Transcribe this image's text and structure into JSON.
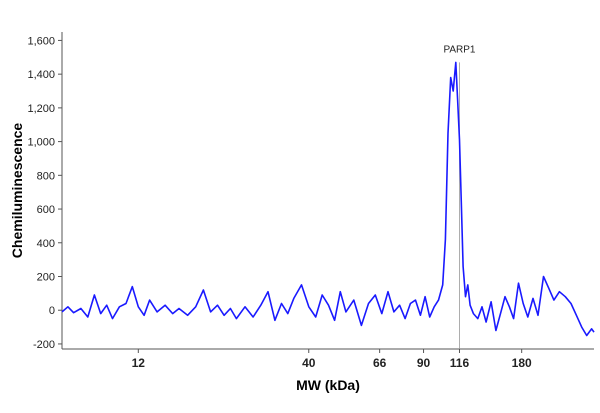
{
  "chart_data": {
    "type": "line",
    "title": "",
    "xlabel": "MW (kDa)",
    "ylabel": "Chemiluminescence",
    "xscale": "log",
    "xlim": [
      7,
      300
    ],
    "ylim": [
      -230,
      1650
    ],
    "grid": false,
    "legend": "none",
    "line_color": "#1a1aff",
    "y_ticks": [
      {
        "value": -200,
        "label": "-200"
      },
      {
        "value": 0,
        "label": "0"
      },
      {
        "value": 200,
        "label": "200"
      },
      {
        "value": 400,
        "label": "400"
      },
      {
        "value": 600,
        "label": "600"
      },
      {
        "value": 800,
        "label": "800"
      },
      {
        "value": 1000,
        "label": "1,000"
      },
      {
        "value": 1200,
        "label": "1,200"
      },
      {
        "value": 1400,
        "label": "1,400"
      },
      {
        "value": 1600,
        "label": "1,600"
      }
    ],
    "x_ticks": [
      {
        "value": 12,
        "label": "12"
      },
      {
        "value": 40,
        "label": "40"
      },
      {
        "value": 66,
        "label": "66"
      },
      {
        "value": 90,
        "label": "90"
      },
      {
        "value": 116,
        "label": "116"
      },
      {
        "value": 180,
        "label": "180"
      }
    ],
    "annotations": [
      {
        "text": "PARP1",
        "x": 116,
        "y": 1470
      }
    ],
    "series": [
      {
        "x": [
          7.0,
          7.3,
          7.6,
          8.0,
          8.4,
          8.8,
          9.2,
          9.6,
          10.0,
          10.5,
          11.0,
          11.5,
          12.0,
          12.5,
          13.0,
          13.7,
          14.5,
          15.3,
          16.0,
          17.0,
          18.0,
          19.0,
          20.0,
          21.0,
          22.0,
          23.0,
          24.0,
          25.5,
          27.0,
          28.5,
          30.0,
          31.5,
          33.0,
          34.5,
          36.0,
          38.0,
          40.0,
          42.0,
          44.0,
          46.0,
          48.0,
          50.0,
          52.0,
          55.0,
          58.0,
          61.0,
          64.0,
          67.0,
          70.0,
          73.0,
          76.0,
          79.0,
          82.0,
          85.0,
          88.0,
          91.0,
          94.0,
          97.0,
          100.0,
          103.0,
          105.0,
          107.0,
          109.0,
          111.0,
          113.0,
          114.5,
          116.0,
          117.5,
          119.0,
          121.0,
          123.0,
          125.0,
          128.0,
          132.0,
          136.0,
          140.0,
          145.0,
          150.0,
          155.0,
          160.0,
          165.0,
          170.0,
          176.0,
          182.0,
          188.0,
          195.0,
          202.0,
          210.0,
          218.0,
          226.0,
          235.0,
          245.0,
          255.0,
          265.0,
          275.0,
          285.0,
          295.0,
          300.0
        ],
        "values": [
          -10,
          20,
          -15,
          10,
          -40,
          90,
          -20,
          30,
          -50,
          20,
          40,
          140,
          20,
          -30,
          60,
          -10,
          30,
          -20,
          10,
          -30,
          20,
          120,
          -10,
          30,
          -30,
          10,
          -50,
          20,
          -40,
          30,
          110,
          -60,
          40,
          -20,
          70,
          150,
          20,
          -40,
          90,
          30,
          -60,
          110,
          -10,
          60,
          -90,
          40,
          90,
          -20,
          110,
          -10,
          30,
          -50,
          40,
          60,
          -30,
          80,
          -40,
          20,
          60,
          150,
          420,
          1050,
          1380,
          1300,
          1470,
          1250,
          1010,
          640,
          260,
          80,
          150,
          30,
          -20,
          -50,
          20,
          -70,
          50,
          -120,
          -20,
          80,
          20,
          -50,
          160,
          40,
          -40,
          70,
          -30,
          200,
          130,
          60,
          110,
          80,
          40,
          -30,
          -100,
          -150,
          -110,
          -130
        ]
      }
    ]
  }
}
